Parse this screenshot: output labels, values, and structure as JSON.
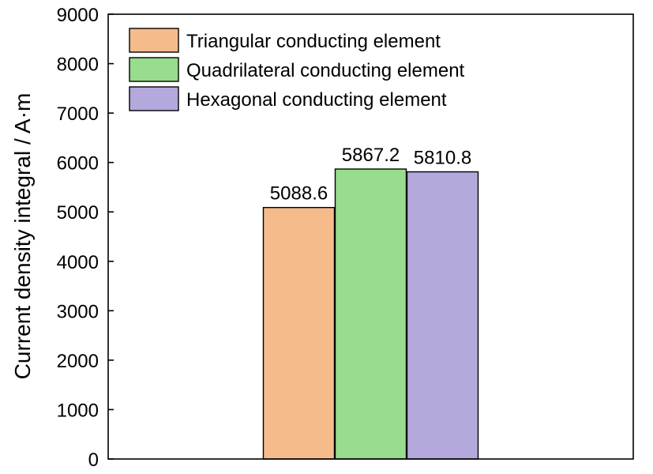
{
  "chart_data": {
    "type": "bar",
    "ylabel": "Current density integral / A·m",
    "ylim": [
      0,
      9000
    ],
    "yticks": [
      0,
      1000,
      2000,
      3000,
      4000,
      5000,
      6000,
      7000,
      8000,
      9000
    ],
    "grid": false,
    "legend_position": "top-left",
    "series": [
      {
        "name": "Triangular conducting element",
        "value": 5088.6,
        "label": "5088.6",
        "color": "#f6bb8b"
      },
      {
        "name": "Quadrilateral conducting element",
        "value": 5867.2,
        "label": "5867.2",
        "color": "#98dc8d"
      },
      {
        "name": "Hexagonal conducting element",
        "value": 5810.8,
        "label": "5810.8",
        "color": "#b5a8dd"
      }
    ]
  }
}
